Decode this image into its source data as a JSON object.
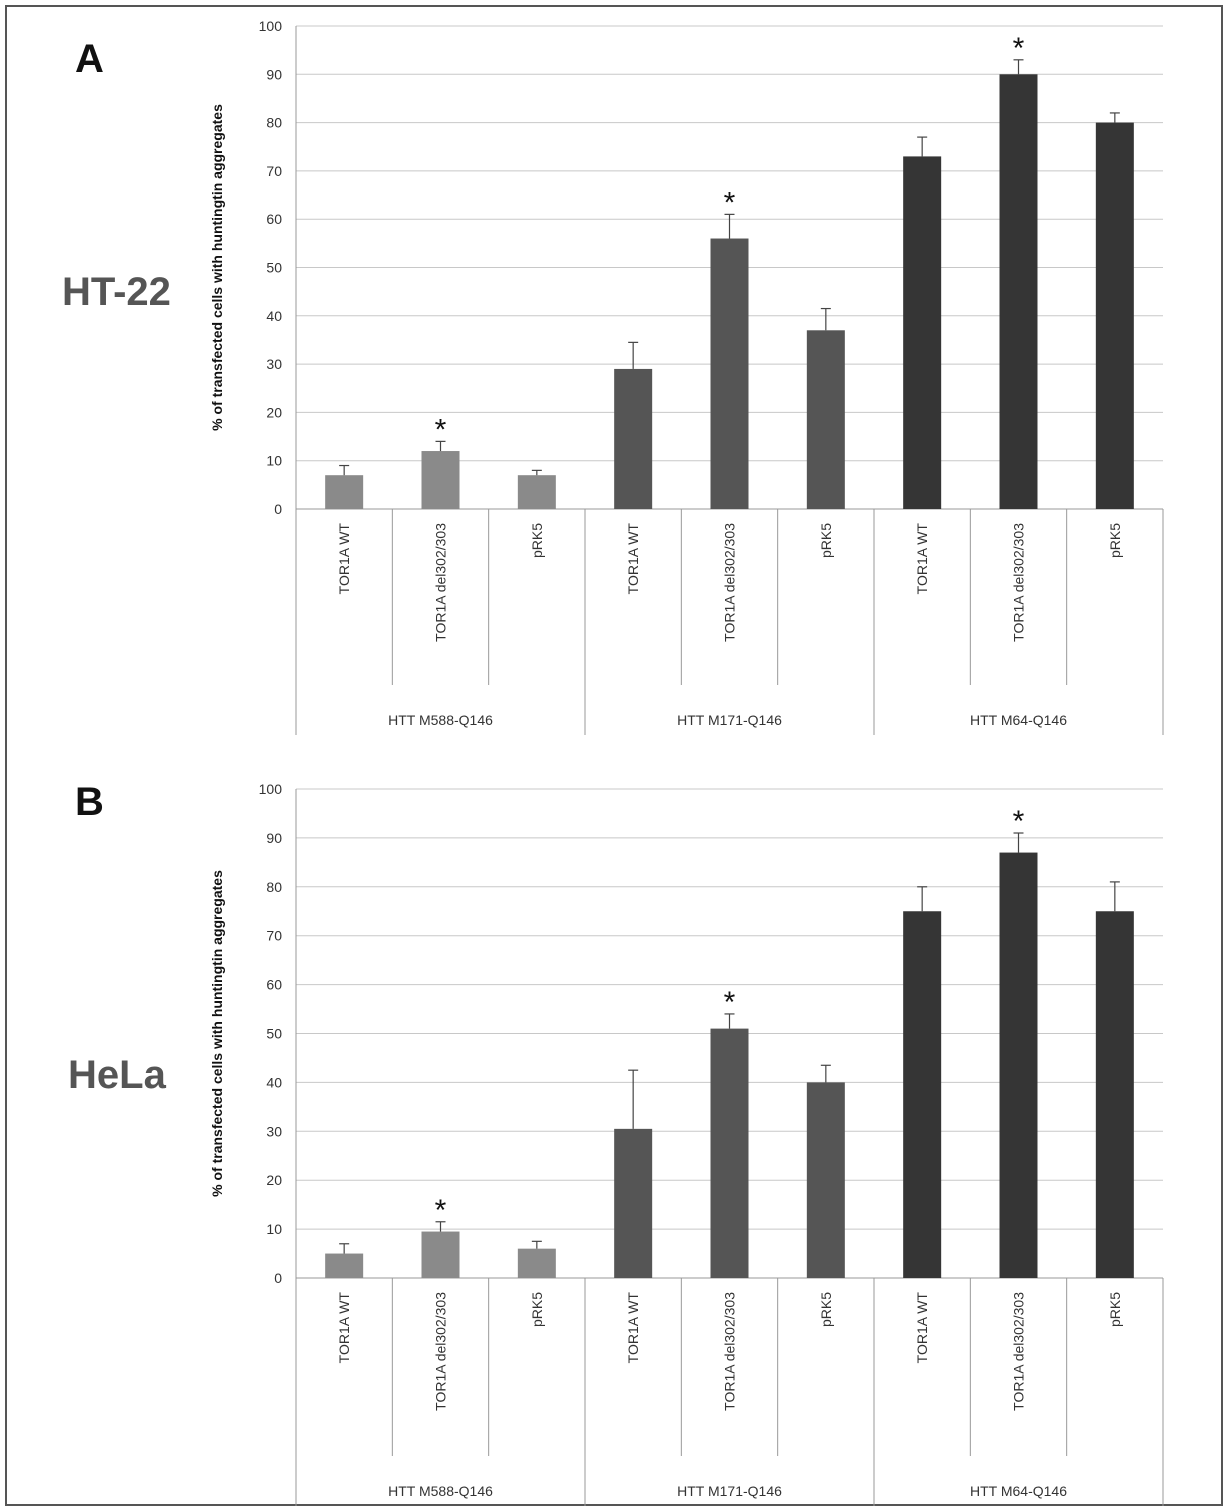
{
  "colors": {
    "light": "#8a8a8a",
    "mid": "#555555",
    "dark": "#353535",
    "grid": "#c8c8c8",
    "axis": "#999999"
  },
  "chart_data": [
    {
      "type": "bar",
      "panel": "A",
      "cell_label": "HT-22",
      "ylabel": "% of transfected cells with huntingtin aggregates",
      "ylim": [
        0,
        100
      ],
      "yticks": [
        0,
        10,
        20,
        30,
        40,
        50,
        60,
        70,
        80,
        90,
        100
      ],
      "categories": [
        "TOR1A WT",
        "TOR1A del302/303",
        "pRK5",
        "TOR1A WT",
        "TOR1A del302/303",
        "pRK5",
        "TOR1A WT",
        "TOR1A del302/303",
        "pRK5"
      ],
      "groups": [
        "HTT M588-Q146",
        "HTT M171-Q146",
        "HTT M64-Q146"
      ],
      "values": [
        7,
        12,
        7,
        29,
        56,
        37,
        73,
        90,
        80
      ],
      "errors": [
        2,
        2,
        1,
        5.5,
        5,
        4.5,
        4,
        3,
        2
      ],
      "significant": [
        false,
        true,
        false,
        false,
        true,
        false,
        false,
        true,
        false
      ],
      "significance_marker": "*"
    },
    {
      "type": "bar",
      "panel": "B",
      "cell_label": "HeLa",
      "ylabel": "% of transfected cells with huntingtin aggregates",
      "ylim": [
        0,
        100
      ],
      "yticks": [
        0,
        10,
        20,
        30,
        40,
        50,
        60,
        70,
        80,
        90,
        100
      ],
      "categories": [
        "TOR1A WT",
        "TOR1A del302/303",
        "pRK5",
        "TOR1A WT",
        "TOR1A del302/303",
        "pRK5",
        "TOR1A WT",
        "TOR1A del302/303",
        "pRK5"
      ],
      "groups": [
        "HTT M588-Q146",
        "HTT M171-Q146",
        "HTT M64-Q146"
      ],
      "values": [
        5,
        9.5,
        6,
        30.5,
        51,
        40,
        75,
        87,
        75
      ],
      "errors": [
        2,
        2,
        1.5,
        12,
        3,
        3.5,
        5,
        4,
        6
      ],
      "significant": [
        false,
        true,
        false,
        false,
        true,
        false,
        false,
        true,
        false
      ],
      "significance_marker": "*"
    }
  ]
}
